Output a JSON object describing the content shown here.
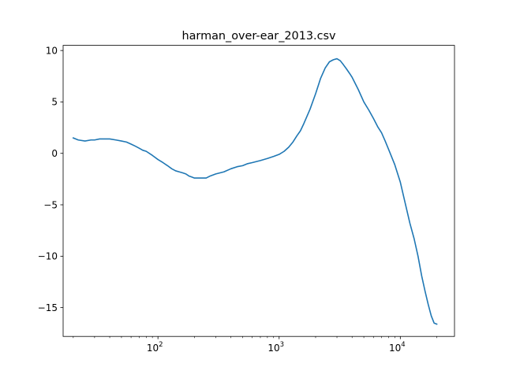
{
  "chart_data": {
    "type": "line",
    "title": "harman_over-ear_2013.csv",
    "xlabel": "",
    "ylabel": "",
    "xscale": "log",
    "xlim": [
      16.5,
      28000
    ],
    "ylim": [
      -17.8,
      10.5
    ],
    "xticks": [
      {
        "value": 100,
        "base": "10",
        "exp": "2"
      },
      {
        "value": 1000,
        "base": "10",
        "exp": "3"
      },
      {
        "value": 10000,
        "base": "10",
        "exp": "4"
      }
    ],
    "yticks": [
      {
        "value": 10,
        "label": "10"
      },
      {
        "value": 5,
        "label": "5"
      },
      {
        "value": 0,
        "label": "0"
      },
      {
        "value": -5,
        "label": "−5"
      },
      {
        "value": -10,
        "label": "−10"
      },
      {
        "value": -15,
        "label": "−15"
      }
    ],
    "grid": false,
    "series": [
      {
        "color": "#1f77b4",
        "x": [
          20,
          22,
          25,
          28,
          30,
          33,
          36,
          40,
          45,
          50,
          55,
          60,
          65,
          70,
          75,
          80,
          90,
          100,
          110,
          120,
          130,
          140,
          150,
          160,
          170,
          180,
          190,
          200,
          220,
          250,
          270,
          300,
          350,
          400,
          450,
          500,
          550,
          600,
          700,
          800,
          900,
          1000,
          1100,
          1200,
          1300,
          1400,
          1500,
          1600,
          1800,
          2000,
          2200,
          2400,
          2600,
          2800,
          3000,
          3200,
          3400,
          3600,
          3800,
          4000,
          4500,
          5000,
          5500,
          6000,
          6500,
          7000,
          7500,
          8000,
          9000,
          10000,
          11000,
          12000,
          13000,
          14000,
          15000,
          16000,
          17000,
          18000,
          19000,
          20000
        ],
        "y": [
          1.5,
          1.3,
          1.2,
          1.3,
          1.3,
          1.4,
          1.4,
          1.4,
          1.3,
          1.2,
          1.1,
          0.9,
          0.7,
          0.5,
          0.3,
          0.2,
          -0.2,
          -0.6,
          -0.9,
          -1.2,
          -1.5,
          -1.7,
          -1.8,
          -1.9,
          -2.0,
          -2.2,
          -2.3,
          -2.4,
          -2.4,
          -2.4,
          -2.2,
          -2.0,
          -1.8,
          -1.5,
          -1.3,
          -1.2,
          -1.0,
          -0.9,
          -0.7,
          -0.5,
          -0.3,
          -0.1,
          0.2,
          0.6,
          1.1,
          1.7,
          2.2,
          2.9,
          4.3,
          5.8,
          7.3,
          8.3,
          8.9,
          9.1,
          9.2,
          9.0,
          8.6,
          8.2,
          7.8,
          7.4,
          6.2,
          5.0,
          4.2,
          3.4,
          2.6,
          2.0,
          1.2,
          0.4,
          -1.1,
          -2.8,
          -4.9,
          -6.8,
          -8.3,
          -10.0,
          -11.9,
          -13.4,
          -14.7,
          -15.8,
          -16.5,
          -16.6
        ]
      }
    ]
  }
}
